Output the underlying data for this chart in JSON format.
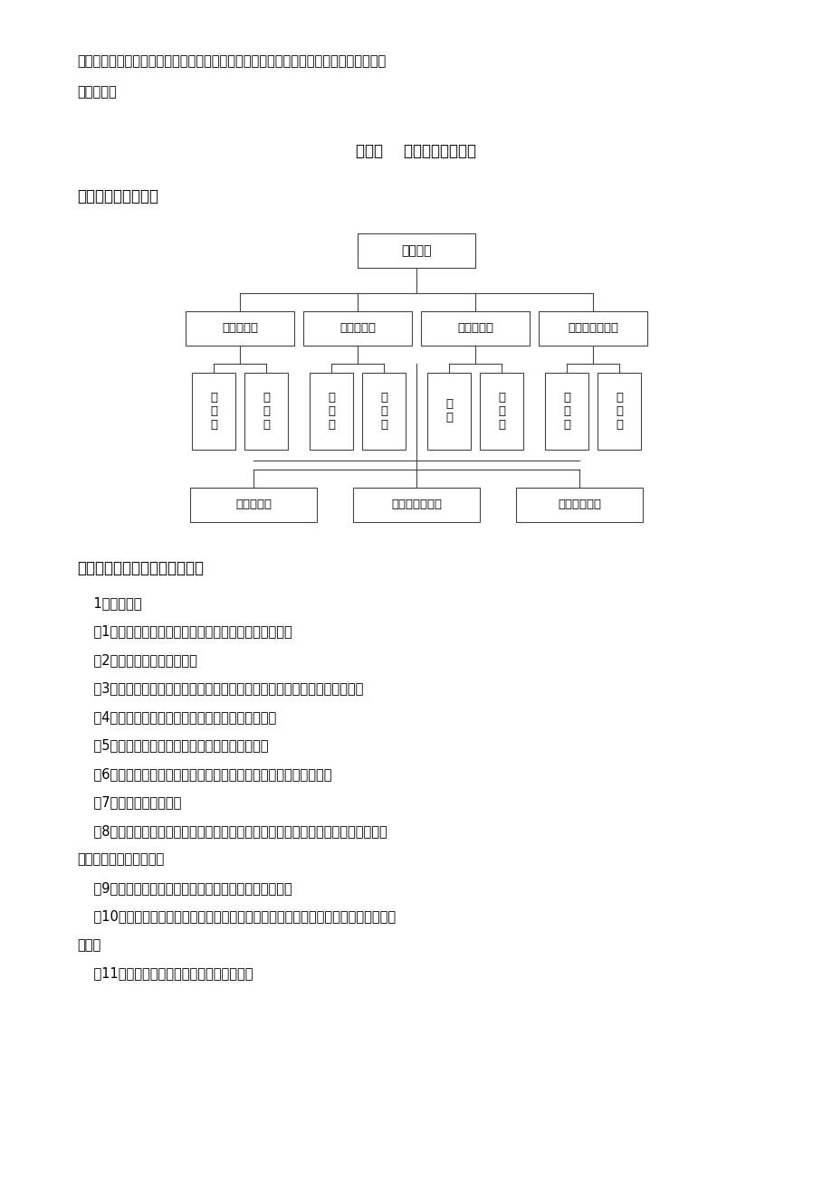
{
  "background_color": "#ffffff",
  "page_width": 9.2,
  "page_height": 13.02,
  "top_text_lines": [
    "工程顺利如期完成。由于北园路机动车道已经完工，进行污水管道施工时，要注意保护已",
    "完工路面。"
  ],
  "chapter_title": "第四章    施工组织管理网络",
  "section1_title": "一、项目部组织机构",
  "section2_title": "二、项目部主要负责人岗位职责",
  "body_lines": [
    "    1、项目经理",
    "    （1）贯彻执行国家有关法律、法规、政策、标准制度。",
    "    （2）参与施工合同的签订。",
    "    （3）签订和履行《项目管理目标责任书》，进行目标控制，确保目标实现。",
    "    （4）主持组建项目经理部，并编制各项管理制度。",
    "    （5）组织项目经理部编制项目实施计划和方案。",
    "    （6）对生产要素优化配置、科学管理、积极推广新工艺、新材料。",
    "    （7）理顺内外部关系。",
    "    （8）严格财务制度，加强成本管理，搞好经济核算，正确处理与本项目部及公司职",
    "工之间的利益分配关系。",
    "    （9）强化现场文明施工，及时发现和处理例外性事件。",
    "    （10）工程竣工后及时组织结算、验收和分析总结，签发《工程质量保修书》，接受",
    "审计。",
    "    （11）做好项目经理部的解体和善后工作。"
  ],
  "row1_label": "项目经理",
  "row2_labels": [
    "技术负责人",
    "质量负责人",
    "安全负责人",
    "材料设备负责人"
  ],
  "row3_pairs": [
    [
      "施\n工\n员",
      "测\n量\n员"
    ],
    [
      "统\n计\n员",
      "质\n量\n员"
    ],
    [
      "电\n工",
      "安\n全\n员"
    ],
    [
      "保\n管\n员",
      "材\n料\n员"
    ]
  ],
  "row4_labels": [
    "土方施工队",
    "污水管道施工队",
    "检查井施工队"
  ]
}
